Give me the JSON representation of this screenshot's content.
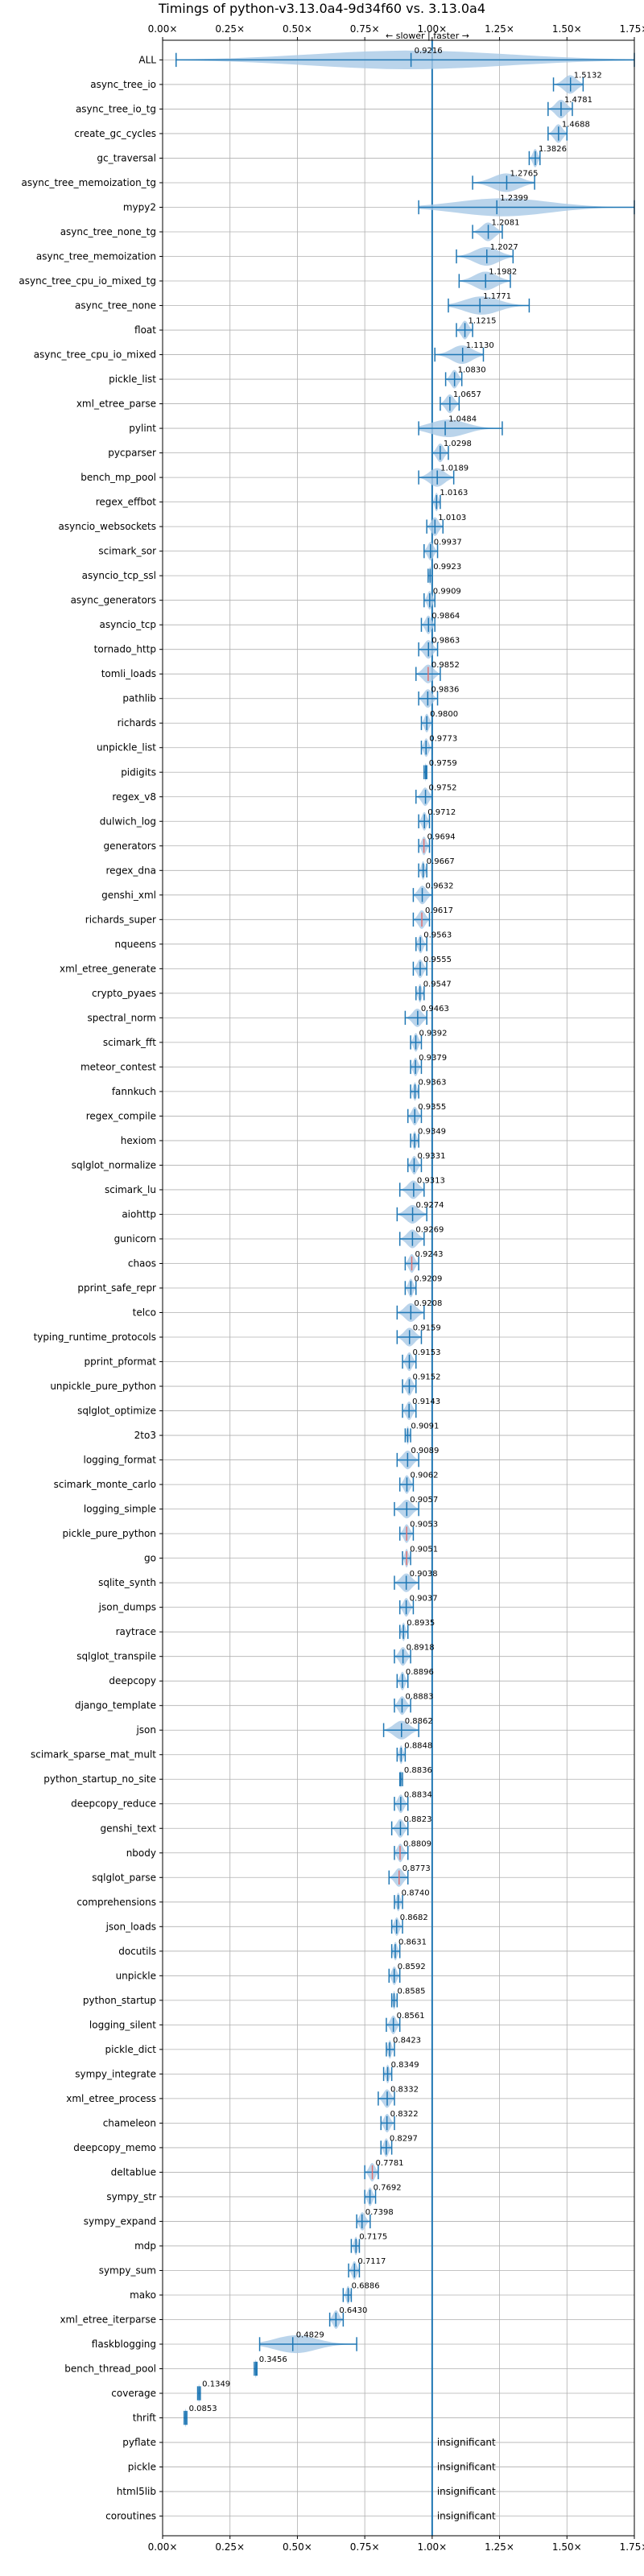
{
  "chart_data": {
    "type": "violin",
    "title": "Timings of python-v3.13.0a4-9d34f60 vs. 3.13.0a4",
    "direction_label": "← slower | faster →",
    "xlim": [
      0,
      1.75
    ],
    "xticks": [
      0,
      0.25,
      0.5,
      0.75,
      1.0,
      1.25,
      1.5,
      1.75
    ],
    "xtick_labels": [
      "0.00×",
      "0.25×",
      "0.50×",
      "0.75×",
      "1.00×",
      "1.25×",
      "1.50×",
      "1.75×"
    ],
    "reference_line": 1.0,
    "colors": {
      "violin": "#a9c9e6",
      "whisker": "#1f77b4",
      "reference": "#1f77b4",
      "grid": "#b0b0b0",
      "highlight": "#e07070"
    },
    "categories": [
      {
        "name": "ALL",
        "value": 0.9216,
        "label": "0.9216",
        "min": 0.05,
        "max": 1.75
      },
      {
        "name": "async_tree_io",
        "value": 1.5132,
        "label": "1.5132",
        "min": 1.45,
        "max": 1.56
      },
      {
        "name": "async_tree_io_tg",
        "value": 1.4781,
        "label": "1.4781",
        "min": 1.43,
        "max": 1.52
      },
      {
        "name": "create_gc_cycles",
        "value": 1.4688,
        "label": "1.4688",
        "min": 1.43,
        "max": 1.5
      },
      {
        "name": "gc_traversal",
        "value": 1.3826,
        "label": "1.3826",
        "min": 1.36,
        "max": 1.4
      },
      {
        "name": "async_tree_memoization_tg",
        "value": 1.2765,
        "label": "1.2765",
        "min": 1.15,
        "max": 1.38
      },
      {
        "name": "mypy2",
        "value": 1.2399,
        "label": "1.2399",
        "min": 0.95,
        "max": 1.75
      },
      {
        "name": "async_tree_none_tg",
        "value": 1.2081,
        "label": "1.2081",
        "min": 1.15,
        "max": 1.26
      },
      {
        "name": "async_tree_memoization",
        "value": 1.2027,
        "label": "1.2027",
        "min": 1.09,
        "max": 1.3
      },
      {
        "name": "async_tree_cpu_io_mixed_tg",
        "value": 1.1982,
        "label": "1.1982",
        "min": 1.1,
        "max": 1.29
      },
      {
        "name": "async_tree_none",
        "value": 1.1771,
        "label": "1.1771",
        "min": 1.06,
        "max": 1.36
      },
      {
        "name": "float",
        "value": 1.1215,
        "label": "1.1215",
        "min": 1.09,
        "max": 1.15
      },
      {
        "name": "async_tree_cpu_io_mixed",
        "value": 1.113,
        "label": "1.1130",
        "min": 1.01,
        "max": 1.19
      },
      {
        "name": "pickle_list",
        "value": 1.083,
        "label": "1.0830",
        "min": 1.05,
        "max": 1.11
      },
      {
        "name": "xml_etree_parse",
        "value": 1.0657,
        "label": "1.0657",
        "min": 1.03,
        "max": 1.1
      },
      {
        "name": "pylint",
        "value": 1.0484,
        "label": "1.0484",
        "min": 0.95,
        "max": 1.26
      },
      {
        "name": "pycparser",
        "value": 1.0298,
        "label": "1.0298",
        "min": 1.0,
        "max": 1.06
      },
      {
        "name": "bench_mp_pool",
        "value": 1.0189,
        "label": "1.0189",
        "min": 0.95,
        "max": 1.08
      },
      {
        "name": "regex_effbot",
        "value": 1.0163,
        "label": "1.0163",
        "min": 1.0,
        "max": 1.03
      },
      {
        "name": "asyncio_websockets",
        "value": 1.0103,
        "label": "1.0103",
        "min": 0.98,
        "max": 1.04
      },
      {
        "name": "scimark_sor",
        "value": 0.9937,
        "label": "0.9937",
        "min": 0.97,
        "max": 1.02
      },
      {
        "name": "asyncio_tcp_ssl",
        "value": 0.9923,
        "label": "0.9923",
        "min": 0.985,
        "max": 1.0
      },
      {
        "name": "async_generators",
        "value": 0.9909,
        "label": "0.9909",
        "min": 0.97,
        "max": 1.01
      },
      {
        "name": "asyncio_tcp",
        "value": 0.9864,
        "label": "0.9864",
        "min": 0.96,
        "max": 1.01
      },
      {
        "name": "tornado_http",
        "value": 0.9863,
        "label": "0.9863",
        "min": 0.95,
        "max": 1.02
      },
      {
        "name": "tomli_loads",
        "value": 0.9852,
        "label": "0.9852",
        "min": 0.94,
        "max": 1.03,
        "highlight": true
      },
      {
        "name": "pathlib",
        "value": 0.9836,
        "label": "0.9836",
        "min": 0.95,
        "max": 1.02
      },
      {
        "name": "richards",
        "value": 0.98,
        "label": "0.9800",
        "min": 0.96,
        "max": 1.0
      },
      {
        "name": "unpickle_list",
        "value": 0.9773,
        "label": "0.9773",
        "min": 0.96,
        "max": 1.0
      },
      {
        "name": "pidigits",
        "value": 0.9759,
        "label": "0.9759",
        "min": 0.97,
        "max": 0.98
      },
      {
        "name": "regex_v8",
        "value": 0.9752,
        "label": "0.9752",
        "min": 0.94,
        "max": 1.0
      },
      {
        "name": "dulwich_log",
        "value": 0.9712,
        "label": "0.9712",
        "min": 0.95,
        "max": 0.99
      },
      {
        "name": "generators",
        "value": 0.9694,
        "label": "0.9694",
        "min": 0.95,
        "max": 0.99,
        "highlight": true
      },
      {
        "name": "regex_dna",
        "value": 0.9667,
        "label": "0.9667",
        "min": 0.95,
        "max": 0.98
      },
      {
        "name": "genshi_xml",
        "value": 0.9632,
        "label": "0.9632",
        "min": 0.93,
        "max": 1.0
      },
      {
        "name": "richards_super",
        "value": 0.9617,
        "label": "0.9617",
        "min": 0.93,
        "max": 0.99,
        "highlight": true
      },
      {
        "name": "nqueens",
        "value": 0.9563,
        "label": "0.9563",
        "min": 0.94,
        "max": 0.98
      },
      {
        "name": "xml_etree_generate",
        "value": 0.9555,
        "label": "0.9555",
        "min": 0.93,
        "max": 0.98
      },
      {
        "name": "crypto_pyaes",
        "value": 0.9547,
        "label": "0.9547",
        "min": 0.94,
        "max": 0.97
      },
      {
        "name": "spectral_norm",
        "value": 0.9463,
        "label": "0.9463",
        "min": 0.9,
        "max": 0.98
      },
      {
        "name": "scimark_fft",
        "value": 0.9392,
        "label": "0.9392",
        "min": 0.92,
        "max": 0.96
      },
      {
        "name": "meteor_contest",
        "value": 0.9379,
        "label": "0.9379",
        "min": 0.92,
        "max": 0.96
      },
      {
        "name": "fannkuch",
        "value": 0.9363,
        "label": "0.9363",
        "min": 0.92,
        "max": 0.95
      },
      {
        "name": "regex_compile",
        "value": 0.9355,
        "label": "0.9355",
        "min": 0.91,
        "max": 0.96
      },
      {
        "name": "hexiom",
        "value": 0.9349,
        "label": "0.9349",
        "min": 0.92,
        "max": 0.95
      },
      {
        "name": "sqlglot_normalize",
        "value": 0.9331,
        "label": "0.9331",
        "min": 0.91,
        "max": 0.96
      },
      {
        "name": "scimark_lu",
        "value": 0.9313,
        "label": "0.9313",
        "min": 0.88,
        "max": 0.97
      },
      {
        "name": "aiohttp",
        "value": 0.9274,
        "label": "0.9274",
        "min": 0.87,
        "max": 0.98
      },
      {
        "name": "gunicorn",
        "value": 0.9269,
        "label": "0.9269",
        "min": 0.88,
        "max": 0.97
      },
      {
        "name": "chaos",
        "value": 0.9243,
        "label": "0.9243",
        "min": 0.9,
        "max": 0.95,
        "highlight": true
      },
      {
        "name": "pprint_safe_repr",
        "value": 0.9209,
        "label": "0.9209",
        "min": 0.9,
        "max": 0.94
      },
      {
        "name": "telco",
        "value": 0.9208,
        "label": "0.9208",
        "min": 0.87,
        "max": 0.97
      },
      {
        "name": "typing_runtime_protocols",
        "value": 0.9159,
        "label": "0.9159",
        "min": 0.87,
        "max": 0.96
      },
      {
        "name": "pprint_pformat",
        "value": 0.9153,
        "label": "0.9153",
        "min": 0.89,
        "max": 0.94
      },
      {
        "name": "unpickle_pure_python",
        "value": 0.9152,
        "label": "0.9152",
        "min": 0.89,
        "max": 0.94
      },
      {
        "name": "sqlglot_optimize",
        "value": 0.9143,
        "label": "0.9143",
        "min": 0.89,
        "max": 0.94
      },
      {
        "name": "2to3",
        "value": 0.9091,
        "label": "0.9091",
        "min": 0.9,
        "max": 0.92
      },
      {
        "name": "logging_format",
        "value": 0.9089,
        "label": "0.9089",
        "min": 0.87,
        "max": 0.95
      },
      {
        "name": "scimark_monte_carlo",
        "value": 0.9062,
        "label": "0.9062",
        "min": 0.88,
        "max": 0.93
      },
      {
        "name": "logging_simple",
        "value": 0.9057,
        "label": "0.9057",
        "min": 0.86,
        "max": 0.95
      },
      {
        "name": "pickle_pure_python",
        "value": 0.9053,
        "label": "0.9053",
        "min": 0.88,
        "max": 0.93,
        "highlight": true
      },
      {
        "name": "go",
        "value": 0.9051,
        "label": "0.9051",
        "min": 0.89,
        "max": 0.92,
        "highlight": true
      },
      {
        "name": "sqlite_synth",
        "value": 0.9038,
        "label": "0.9038",
        "min": 0.86,
        "max": 0.95
      },
      {
        "name": "json_dumps",
        "value": 0.9037,
        "label": "0.9037",
        "min": 0.88,
        "max": 0.93
      },
      {
        "name": "raytrace",
        "value": 0.8935,
        "label": "0.8935",
        "min": 0.88,
        "max": 0.91
      },
      {
        "name": "sqlglot_transpile",
        "value": 0.8918,
        "label": "0.8918",
        "min": 0.86,
        "max": 0.92
      },
      {
        "name": "deepcopy",
        "value": 0.8896,
        "label": "0.8896",
        "min": 0.87,
        "max": 0.91
      },
      {
        "name": "django_template",
        "value": 0.8883,
        "label": "0.8883",
        "min": 0.86,
        "max": 0.92
      },
      {
        "name": "json",
        "value": 0.8862,
        "label": "0.8862",
        "min": 0.82,
        "max": 0.95
      },
      {
        "name": "scimark_sparse_mat_mult",
        "value": 0.8848,
        "label": "0.8848",
        "min": 0.87,
        "max": 0.9
      },
      {
        "name": "python_startup_no_site",
        "value": 0.8836,
        "label": "0.8836",
        "min": 0.88,
        "max": 0.89
      },
      {
        "name": "deepcopy_reduce",
        "value": 0.8834,
        "label": "0.8834",
        "min": 0.86,
        "max": 0.91
      },
      {
        "name": "genshi_text",
        "value": 0.8823,
        "label": "0.8823",
        "min": 0.85,
        "max": 0.91
      },
      {
        "name": "nbody",
        "value": 0.8809,
        "label": "0.8809",
        "min": 0.86,
        "max": 0.91,
        "highlight": true
      },
      {
        "name": "sqlglot_parse",
        "value": 0.8773,
        "label": "0.8773",
        "min": 0.84,
        "max": 0.91,
        "highlight": true
      },
      {
        "name": "comprehensions",
        "value": 0.874,
        "label": "0.8740",
        "min": 0.86,
        "max": 0.89
      },
      {
        "name": "json_loads",
        "value": 0.8682,
        "label": "0.8682",
        "min": 0.85,
        "max": 0.89
      },
      {
        "name": "docutils",
        "value": 0.8631,
        "label": "0.8631",
        "min": 0.85,
        "max": 0.88
      },
      {
        "name": "unpickle",
        "value": 0.8592,
        "label": "0.8592",
        "min": 0.84,
        "max": 0.88
      },
      {
        "name": "python_startup",
        "value": 0.8585,
        "label": "0.8585",
        "min": 0.85,
        "max": 0.87
      },
      {
        "name": "logging_silent",
        "value": 0.8561,
        "label": "0.8561",
        "min": 0.83,
        "max": 0.88
      },
      {
        "name": "pickle_dict",
        "value": 0.8423,
        "label": "0.8423",
        "min": 0.83,
        "max": 0.86
      },
      {
        "name": "sympy_integrate",
        "value": 0.8349,
        "label": "0.8349",
        "min": 0.82,
        "max": 0.85
      },
      {
        "name": "xml_etree_process",
        "value": 0.8332,
        "label": "0.8332",
        "min": 0.8,
        "max": 0.86
      },
      {
        "name": "chameleon",
        "value": 0.8322,
        "label": "0.8322",
        "min": 0.81,
        "max": 0.86
      },
      {
        "name": "deepcopy_memo",
        "value": 0.8297,
        "label": "0.8297",
        "min": 0.81,
        "max": 0.85
      },
      {
        "name": "deltablue",
        "value": 0.7781,
        "label": "0.7781",
        "min": 0.75,
        "max": 0.8,
        "highlight": true
      },
      {
        "name": "sympy_str",
        "value": 0.7692,
        "label": "0.7692",
        "min": 0.75,
        "max": 0.79
      },
      {
        "name": "sympy_expand",
        "value": 0.7398,
        "label": "0.7398",
        "min": 0.72,
        "max": 0.77
      },
      {
        "name": "mdp",
        "value": 0.7175,
        "label": "0.7175",
        "min": 0.7,
        "max": 0.73
      },
      {
        "name": "sympy_sum",
        "value": 0.7117,
        "label": "0.7117",
        "min": 0.69,
        "max": 0.73
      },
      {
        "name": "mako",
        "value": 0.6886,
        "label": "0.6886",
        "min": 0.67,
        "max": 0.7
      },
      {
        "name": "xml_etree_iterparse",
        "value": 0.643,
        "label": "0.6430",
        "min": 0.62,
        "max": 0.67
      },
      {
        "name": "flaskblogging",
        "value": 0.4829,
        "label": "0.4829",
        "min": 0.36,
        "max": 0.72
      },
      {
        "name": "bench_thread_pool",
        "value": 0.3456,
        "label": "0.3456",
        "min": 0.34,
        "max": 0.35
      },
      {
        "name": "coverage",
        "value": 0.1349,
        "label": "0.1349",
        "min": 0.13,
        "max": 0.14
      },
      {
        "name": "thrift",
        "value": 0.0853,
        "label": "0.0853",
        "min": 0.08,
        "max": 0.09
      },
      {
        "name": "pyflate",
        "value": null,
        "label": "insignificant"
      },
      {
        "name": "pickle",
        "value": null,
        "label": "insignificant"
      },
      {
        "name": "html5lib",
        "value": null,
        "label": "insignificant"
      },
      {
        "name": "coroutines",
        "value": null,
        "label": "insignificant"
      }
    ]
  }
}
